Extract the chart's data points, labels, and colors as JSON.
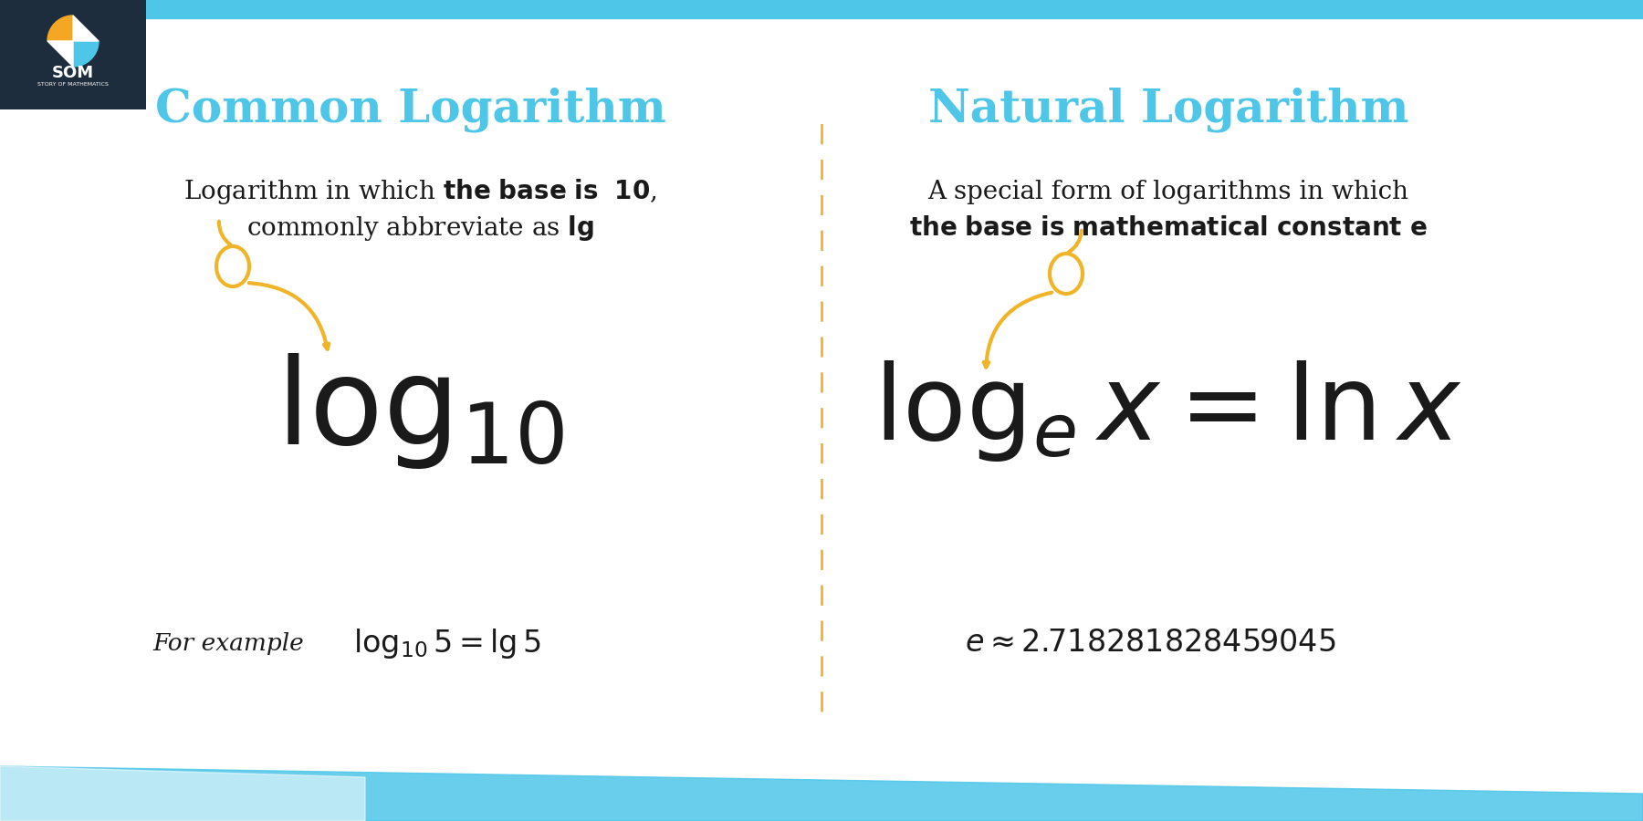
{
  "bg_color": "#ffffff",
  "header_bg": "#1e2d3d",
  "cyan_color": "#4ec6e8",
  "gold_color": "#f0b429",
  "text_dark": "#1a1a1a",
  "divider_color": "#f0b429",
  "title_left": "Common Logarithm",
  "title_right": "Natural Logarithm",
  "desc_left_1": "Logarithm in which ",
  "desc_left_bold_1": "the base is  10",
  "desc_left_2": ",",
  "desc_left_3": "commonly abbreviate as ",
  "desc_left_bold_2": "lg",
  "desc_right_1": "A special form of logarithms in which",
  "desc_right_2": "the base is mathematical constant e",
  "formula_left": "$\\log_{10}$",
  "formula_right": "$\\log_e x = \\ln x$",
  "example_left": "$\\log_{10} 5 = \\lg 5$",
  "example_right": "$e \\approx 2.718281828459045$",
  "for_example": "For example",
  "header_stripe_color": "#4ec6e8",
  "bottom_stripe_color": "#4ec6e8"
}
